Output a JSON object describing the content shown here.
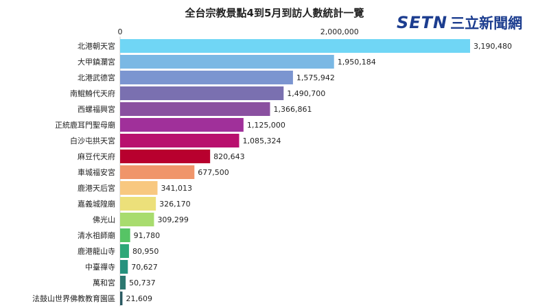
{
  "chart_data": {
    "type": "bar",
    "orientation": "horizontal",
    "title": "全台宗教景點4到5月到訪人數統計一覽",
    "categories": [
      "北港朝天宮",
      "大甲鎮瀾宮",
      "北港武德宮",
      "南鯤鯓代天府",
      "西螺福興宮",
      "正統鹿耳門聖母廟",
      "白沙屯拱天宮",
      "麻豆代天府",
      "車城福安宮",
      "鹿港天后宮",
      "嘉義城隍廟",
      "佛光山",
      "清水祖師廟",
      "鹿港龍山寺",
      "中臺禪寺",
      "萬和宮",
      "法鼓山世界佛教教育園區"
    ],
    "values": [
      3190480,
      1950184,
      1575942,
      1490700,
      1366861,
      1125000,
      1085324,
      820643,
      677500,
      341013,
      326170,
      309299,
      91780,
      80950,
      70627,
      50737,
      21609
    ],
    "value_labels": [
      "3,190,480",
      "1,950,184",
      "1,575,942",
      "1,490,700",
      "1,366,861",
      "1,125,000",
      "1,085,324",
      "820,643",
      "677,500",
      "341,013",
      "326,170",
      "309,299",
      "91,780",
      "80,950",
      "70,627",
      "50,737",
      "21,609"
    ],
    "colors": [
      "#70d6f5",
      "#7ab8e4",
      "#7b95d0",
      "#7a70b0",
      "#8a50a0",
      "#a0309a",
      "#b8106e",
      "#b8002e",
      "#f0956a",
      "#f8c880",
      "#ece07a",
      "#a8dc6e",
      "#56c465",
      "#2ea878",
      "#25917d",
      "#2c7870",
      "#2a5a62"
    ],
    "x_ticks": [
      0,
      2000000
    ],
    "x_tick_labels": [
      "0",
      "2,000,000"
    ],
    "xlim": [
      0,
      3190480
    ],
    "grid": false,
    "legend": "none"
  },
  "logo": {
    "brand": "SETN",
    "name": "三立新聞網",
    "color": "#1c3d8f"
  }
}
